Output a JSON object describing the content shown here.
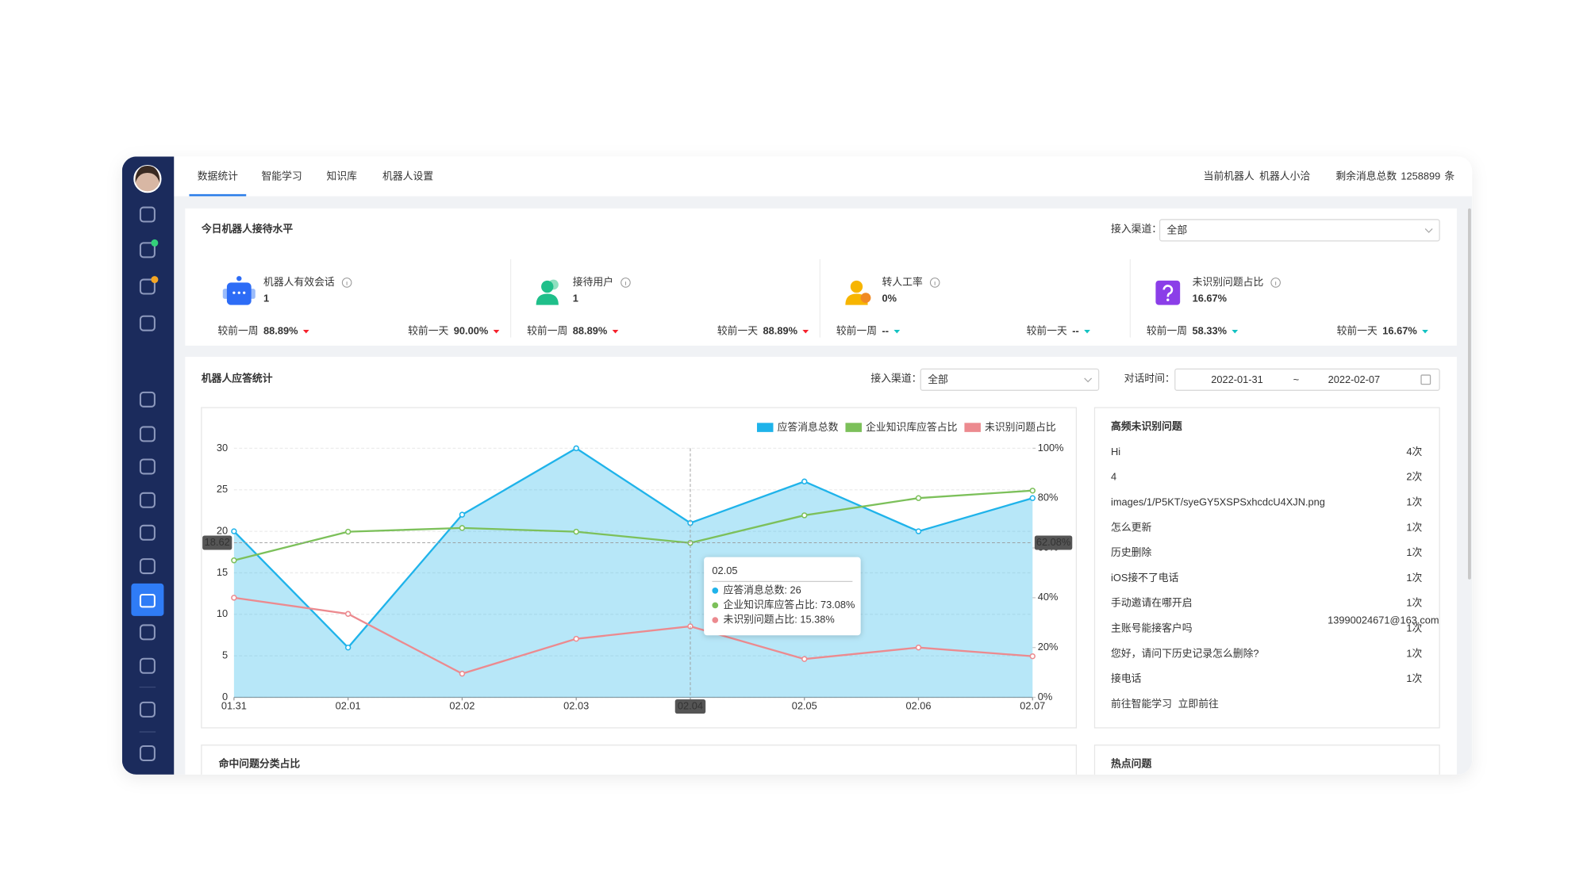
{
  "nav": {
    "tabs": [
      "数据统计",
      "智能学习",
      "知识库",
      "机器人设置"
    ],
    "active": 0,
    "robot_label": "当前机器人",
    "robot_name": "机器人小洽",
    "remaining_label": "剩余消息总数",
    "remaining_value": "1258899",
    "remaining_unit": "条"
  },
  "today": {
    "title": "今日机器人接待水平",
    "channel_label": "接入渠道：",
    "channel_placeholder": "全部",
    "stats": [
      {
        "label": "机器人有效会话",
        "value": "1",
        "week_label": "较前一周",
        "week_value": "88.89%",
        "day_label": "较前一天",
        "day_value": "90.00%",
        "trend_color": "#f5222d"
      },
      {
        "label": "接待用户",
        "value": "1",
        "week_label": "较前一周",
        "week_value": "88.89%",
        "day_label": "较前一天",
        "day_value": "88.89%",
        "trend_color": "#f5222d"
      },
      {
        "label": "转人工率",
        "value": "0%",
        "week_label": "较前一周",
        "week_value": "--",
        "day_label": "较前一天",
        "day_value": "--",
        "trend_color": "#13c2c2"
      },
      {
        "label": "未识别问题占比",
        "value": "16.67%",
        "week_label": "较前一周",
        "week_value": "58.33%",
        "day_label": "较前一天",
        "day_value": "16.67%",
        "trend_color": "#13c2c2"
      }
    ]
  },
  "response": {
    "title": "机器人应答统计",
    "channel_label": "接入渠道：",
    "channel_placeholder": "全部",
    "time_label": "对话时间：",
    "start": "2022-01-31",
    "separator": "~",
    "end": "2022-02-07"
  },
  "chart_data": {
    "type": "line",
    "categories": [
      "01.31",
      "02.01",
      "02.02",
      "02.03",
      "02.04",
      "02.05",
      "02.06",
      "02.07"
    ],
    "series": [
      {
        "name": "应答消息总数",
        "color": "#1fb3ea",
        "area": true,
        "values": [
          20,
          6,
          22,
          30,
          21,
          26,
          20,
          24
        ]
      },
      {
        "name": "企业知识库应答占比",
        "color": "#7cc05a",
        "axis": "y2",
        "values": [
          55,
          66.5,
          68,
          66.5,
          62,
          73.08,
          80,
          83
        ]
      },
      {
        "name": "未识别问题占比",
        "color": "#ec8a8f",
        "axis": "y2",
        "values": [
          40,
          33.5,
          9.5,
          23.5,
          28.5,
          15.38,
          20,
          16.5
        ]
      }
    ],
    "ylim": [
      0,
      30
    ],
    "yticks": [
      0,
      5,
      10,
      15,
      20,
      25,
      30
    ],
    "y2lim": [
      0,
      100
    ],
    "y2ticks": [
      {
        "value": 0,
        "label": "0%"
      },
      {
        "value": 20,
        "label": "20%"
      },
      {
        "value": 40,
        "label": "40%"
      },
      {
        "value": 60,
        "label": "60%"
      },
      {
        "value": 80,
        "label": "80%"
      },
      {
        "value": 100,
        "label": "100%"
      }
    ],
    "grid": true,
    "legend": "top-right",
    "cursor": {
      "x": "02.04",
      "y": 18.62,
      "y2": {
        "value": 62.08,
        "label": "62.08%"
      }
    },
    "tooltip": {
      "title": "02.05",
      "items": [
        "应答消息总数: 26",
        "企业知识库应答占比: 73.08%",
        "未识别问题占比: 15.38%"
      ]
    }
  },
  "unrecognized": {
    "title": "高频未识别问题",
    "items": [
      {
        "text": "Hi",
        "count": "4次"
      },
      {
        "text": "4",
        "count": "2次"
      },
      {
        "text": "images/1/P5KT/syeGY5XSPSxhcdcU4XJN.png",
        "count": "1次"
      },
      {
        "text": "怎么更新",
        "count": "1次"
      },
      {
        "text": "历史删除",
        "count": "1次"
      },
      {
        "text": "iOS接不了电话",
        "count": "1次"
      },
      {
        "text": "手动邀请在哪开启",
        "count": "1次"
      },
      {
        "text": "主账号能接客户吗",
        "count": "1次"
      },
      {
        "text": "您好，请问下历史记录怎么删除?",
        "count": "1次"
      },
      {
        "text": "接电话",
        "count": "1次"
      }
    ],
    "footer": "前往智能学习",
    "link": "立即前往",
    "overlay": "13990024671@163.com"
  },
  "bottom": {
    "left_title": "命中问题分类占比",
    "right_title": "热点问题"
  }
}
